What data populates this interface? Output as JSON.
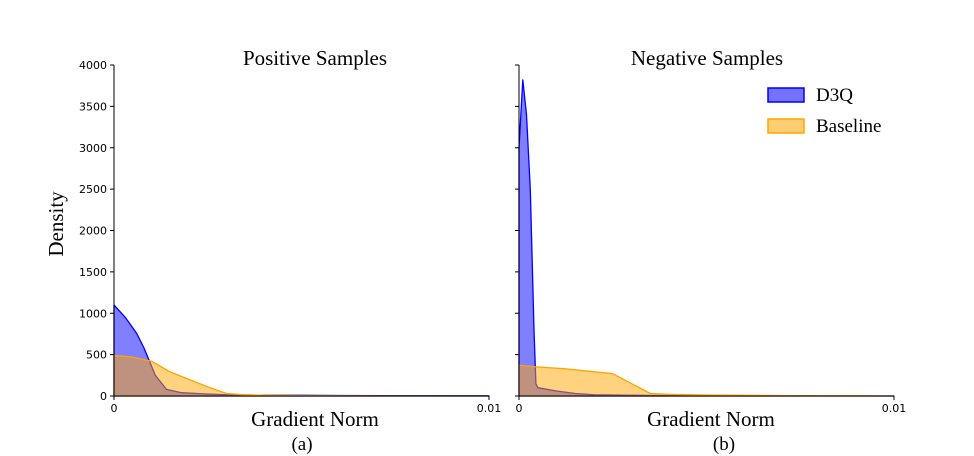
{
  "figure": {
    "ylabel": "Density",
    "legend": {
      "placement": "top-right of panel (b)",
      "entries": [
        {
          "label": "D3Q",
          "color": "#0000ff"
        },
        {
          "label": "Baseline",
          "color": "#ffa500"
        }
      ]
    }
  },
  "chart_data": [
    {
      "type": "area",
      "title": "Positive Samples",
      "xlabel": "Gradient Norm",
      "caption": "(a)",
      "xlim": [
        0,
        0.01
      ],
      "ylim": [
        0,
        4000
      ],
      "x_ticks": [
        "0",
        "0.01"
      ],
      "y_ticks": [
        "0",
        "500",
        "1000",
        "1500",
        "2000",
        "2500",
        "3000",
        "3500",
        "4000"
      ],
      "grid": false,
      "series": [
        {
          "name": "D3Q",
          "color": "#0000ff",
          "x": [
            0,
            0.0003,
            0.0006,
            0.0008,
            0.0011,
            0.0014,
            0.0018,
            0.0024,
            0.003,
            0.004,
            0.005,
            0.006,
            0.007,
            0.008,
            0.009,
            0.01
          ],
          "y": [
            1100,
            950,
            760,
            580,
            250,
            80,
            40,
            25,
            15,
            10,
            8,
            6,
            5,
            4,
            3,
            2
          ]
        },
        {
          "name": "Baseline",
          "color": "#ffa500",
          "x": [
            0,
            0.0005,
            0.001,
            0.0015,
            0.002,
            0.0025,
            0.003,
            0.0035,
            0.004,
            0.005,
            0.006,
            0.007,
            0.008,
            0.009,
            0.01
          ],
          "y": [
            490,
            470,
            420,
            290,
            200,
            110,
            30,
            15,
            8,
            4,
            2,
            1,
            1,
            0,
            0
          ]
        }
      ]
    },
    {
      "type": "area",
      "title": "Negative Samples",
      "xlabel": "Gradient Norm",
      "caption": "(b)",
      "xlim": [
        0,
        0.01
      ],
      "ylim": [
        0,
        4000
      ],
      "x_ticks": [
        "0",
        "0.01"
      ],
      "y_ticks": [],
      "grid": false,
      "series": [
        {
          "name": "D3Q",
          "color": "#0000ff",
          "x": [
            0,
            0.0001,
            0.0002,
            0.0003,
            0.0004,
            0.00045,
            0.0005,
            0.001,
            0.0015,
            0.002,
            0.003,
            0.004,
            0.005,
            0.006,
            0.008,
            0.01
          ],
          "y": [
            3000,
            3820,
            3400,
            2500,
            800,
            150,
            100,
            60,
            30,
            15,
            8,
            5,
            3,
            2,
            1,
            0
          ]
        },
        {
          "name": "Baseline",
          "color": "#ffa500",
          "x": [
            0,
            0.0005,
            0.0012,
            0.0025,
            0.0035,
            0.004,
            0.005,
            0.006,
            0.007,
            0.008,
            0.009,
            0.01
          ],
          "y": [
            370,
            350,
            330,
            270,
            30,
            20,
            12,
            8,
            5,
            3,
            2,
            0
          ]
        }
      ]
    }
  ]
}
